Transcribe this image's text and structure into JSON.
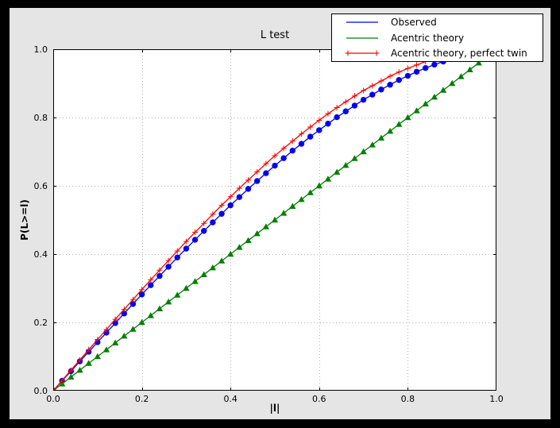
{
  "window": {
    "background": "#000000",
    "figure_background": "#e5e5e5",
    "plot_background": "#ffffff",
    "axes_color": "#000000",
    "grid_color": "#b0b0b0"
  },
  "chart_data": {
    "type": "line",
    "title": "L test",
    "xlabel": "|l|",
    "ylabel": "P(L>=l)",
    "xlim": [
      0.0,
      1.0
    ],
    "ylim": [
      0.0,
      1.0
    ],
    "xtick_labels": [
      "0.0",
      "0.2",
      "0.4",
      "0.6",
      "0.8",
      "1.0"
    ],
    "ytick_labels": [
      "0.0",
      "0.2",
      "0.4",
      "0.6",
      "0.8",
      "1.0"
    ],
    "grid": true,
    "grid_style": "dotted",
    "legend_position": "top-right",
    "x": [
      0.0,
      0.02,
      0.04,
      0.06,
      0.08,
      0.1,
      0.12,
      0.14,
      0.16,
      0.18,
      0.2,
      0.22,
      0.24,
      0.26,
      0.28,
      0.3,
      0.32,
      0.34,
      0.36,
      0.38,
      0.4,
      0.42,
      0.44,
      0.46,
      0.48,
      0.5,
      0.52,
      0.54,
      0.56,
      0.58,
      0.6,
      0.62,
      0.64,
      0.66,
      0.68,
      0.7,
      0.72,
      0.74,
      0.76,
      0.78,
      0.8,
      0.82,
      0.84,
      0.86,
      0.88,
      0.9,
      0.92,
      0.94,
      0.96
    ],
    "series": [
      {
        "name": "Observed",
        "color": "#0000ee",
        "marker": "circle",
        "legend_markers": false,
        "values": [
          0.0,
          0.029,
          0.057,
          0.086,
          0.114,
          0.142,
          0.17,
          0.198,
          0.226,
          0.254,
          0.282,
          0.309,
          0.336,
          0.363,
          0.39,
          0.416,
          0.442,
          0.468,
          0.493,
          0.518,
          0.543,
          0.567,
          0.591,
          0.614,
          0.637,
          0.659,
          0.681,
          0.703,
          0.723,
          0.744,
          0.763,
          0.782,
          0.801,
          0.818,
          0.835,
          0.852,
          0.867,
          0.882,
          0.896,
          0.91,
          0.922,
          0.934,
          0.945,
          0.955,
          0.964,
          0.973,
          0.98,
          0.987,
          0.992
        ]
      },
      {
        "name": "Acentric theory",
        "color": "#007f00",
        "marker": "triangle-up",
        "legend_markers": false,
        "values": [
          0.0,
          0.02,
          0.04,
          0.06,
          0.08,
          0.1,
          0.12,
          0.14,
          0.16,
          0.18,
          0.2,
          0.22,
          0.24,
          0.26,
          0.28,
          0.3,
          0.32,
          0.34,
          0.36,
          0.38,
          0.4,
          0.42,
          0.44,
          0.46,
          0.48,
          0.5,
          0.52,
          0.54,
          0.56,
          0.58,
          0.6,
          0.62,
          0.64,
          0.66,
          0.68,
          0.7,
          0.72,
          0.74,
          0.76,
          0.78,
          0.8,
          0.82,
          0.84,
          0.86,
          0.88,
          0.9,
          0.92,
          0.94,
          0.96
        ]
      },
      {
        "name": "Acentric theory, perfect twin",
        "color": "#ff0000",
        "marker": "plus",
        "legend_markers": true,
        "values": [
          0.0,
          0.03,
          0.06,
          0.09,
          0.12,
          0.15,
          0.179,
          0.209,
          0.238,
          0.267,
          0.296,
          0.325,
          0.353,
          0.381,
          0.409,
          0.437,
          0.464,
          0.49,
          0.517,
          0.543,
          0.568,
          0.593,
          0.617,
          0.641,
          0.665,
          0.688,
          0.71,
          0.731,
          0.752,
          0.772,
          0.792,
          0.811,
          0.829,
          0.846,
          0.863,
          0.879,
          0.893,
          0.907,
          0.921,
          0.933,
          0.944,
          0.954,
          0.964,
          0.972,
          0.979,
          0.986,
          0.991,
          0.995,
          0.998
        ]
      }
    ]
  }
}
